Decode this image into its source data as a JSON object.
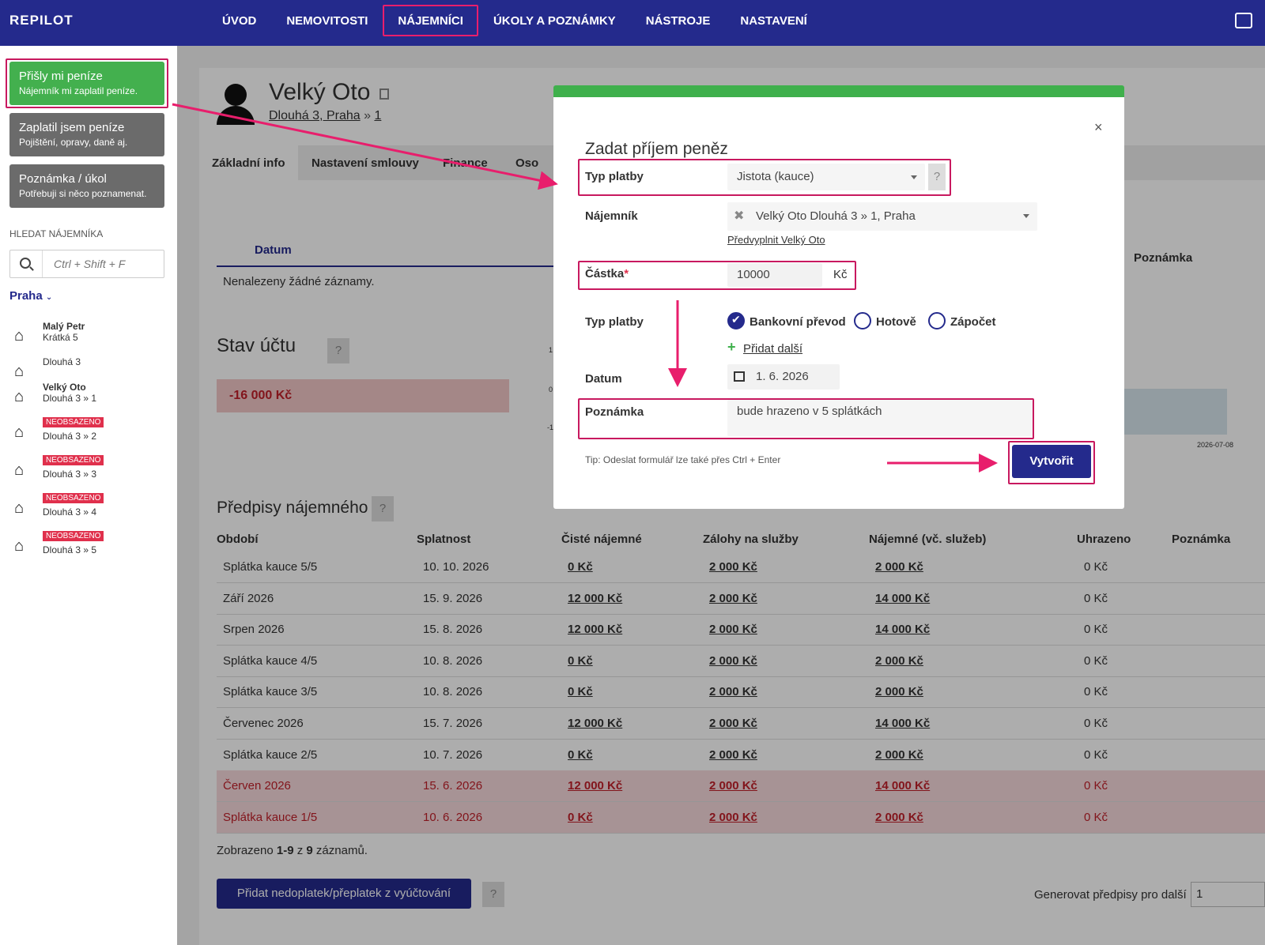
{
  "logo": "REPILOT",
  "nav": [
    "ÚVOD",
    "NEMOVITOSTI",
    "NÁJEMNÍCI",
    "ÚKOLY A POZNÁMKY",
    "NÁSTROJE",
    "NASTAVENÍ"
  ],
  "actions": [
    {
      "title": "Přišly mi peníze",
      "sub": "Nájemník mi zaplatil peníze.",
      "color": "#43b04e"
    },
    {
      "title": "Zaplatil jsem peníze",
      "sub": "Pojištění, opravy, daně aj.",
      "color": "#6b6b6b"
    },
    {
      "title": "Poznámka / úkol",
      "sub": "Potřebuji si něco poznamenat.",
      "color": "#6b6b6b"
    }
  ],
  "search": {
    "label": "HLEDAT NÁJEMNÍKA",
    "placeholder": "Ctrl + Shift + F"
  },
  "city": "Praha",
  "tenants": [
    {
      "name": "Malý Petr",
      "addr": "Krátká 5"
    },
    {
      "name": "",
      "addr": "Dlouhá 3"
    },
    {
      "name": "Velký Oto",
      "addr": "Dlouhá 3 » 1"
    },
    {
      "badge": "NEOBSAZENO",
      "addr": "Dlouhá 3 » 2"
    },
    {
      "badge": "NEOBSAZENO",
      "addr": "Dlouhá 3 » 3"
    },
    {
      "badge": "NEOBSAZENO",
      "addr": "Dlouhá 3 » 4"
    },
    {
      "badge": "NEOBSAZENO",
      "addr": "Dlouhá 3 » 5"
    }
  ],
  "tenant": {
    "name": "Velký Oto",
    "addr": "Dlouhá 3, Praha",
    "unit": "1"
  },
  "tabs": [
    "Základní info",
    "Nastavení smlouvy",
    "Finance",
    "Oso"
  ],
  "payments": {
    "col_date": "Datum",
    "col_note": "Poznámka",
    "empty": "Nenalezeny žádné záznamy."
  },
  "balance": {
    "title": "Stav účtu",
    "value": "-16 000 Kč",
    "chart_ticks": [
      "1",
      "0",
      "-1"
    ],
    "chart_date": "2026-07-08"
  },
  "modal": {
    "title": "Zadat příjem peněz",
    "close": "×",
    "type_label": "Typ platby",
    "type_value": "Jistota (kauce)",
    "tenant_label": "Nájemník",
    "tenant_value": "Velký Oto Dlouhá 3 » 1, Praha",
    "prefill": "Předvyplnit Velký Oto",
    "amount_label": "Částka",
    "amount_value": "10000",
    "currency": "Kč",
    "method_label": "Typ platby",
    "methods": [
      "Bankovní převod",
      "Hotově",
      "Zápočet"
    ],
    "add_more": "Přidat další",
    "date_label": "Datum",
    "date_value": "1. 6. 2026",
    "note_label": "Poznámka",
    "note_value": "bude hrazeno v 5 splátkách",
    "tip": "Tip: Odeslat formulář lze také přes Ctrl + Enter",
    "submit": "Vytvořit"
  },
  "rent": {
    "title": "Předpisy nájemného",
    "headers": [
      "Období",
      "Splatnost",
      "Čisté nájemné",
      "Zálohy na služby",
      "Nájemné (vč. služeb)",
      "Uhrazeno",
      "Poznámka"
    ],
    "rows": [
      [
        "Splátka kauce 5/5",
        "10. 10. 2026",
        "0 Kč",
        "2 000 Kč",
        "2 000 Kč",
        "0 Kč"
      ],
      [
        "Září 2026",
        "15. 9. 2026",
        "12 000 Kč",
        "2 000 Kč",
        "14 000 Kč",
        "0 Kč"
      ],
      [
        "Srpen 2026",
        "15. 8. 2026",
        "12 000 Kč",
        "2 000 Kč",
        "14 000 Kč",
        "0 Kč"
      ],
      [
        "Splátka kauce 4/5",
        "10. 8. 2026",
        "0 Kč",
        "2 000 Kč",
        "2 000 Kč",
        "0 Kč"
      ],
      [
        "Splátka kauce 3/5",
        "10. 8. 2026",
        "0 Kč",
        "2 000 Kč",
        "2 000 Kč",
        "0 Kč"
      ],
      [
        "Červenec 2026",
        "15. 7. 2026",
        "12 000 Kč",
        "2 000 Kč",
        "14 000 Kč",
        "0 Kč"
      ],
      [
        "Splátka kauce 2/5",
        "10. 7. 2026",
        "0 Kč",
        "2 000 Kč",
        "2 000 Kč",
        "0 Kč"
      ],
      [
        "Červen 2026",
        "15. 6. 2026",
        "12 000 Kč",
        "2 000 Kč",
        "14 000 Kč",
        "0 Kč"
      ],
      [
        "Splátka kauce 1/5",
        "10. 6. 2026",
        "0 Kč",
        "2 000 Kč",
        "2 000 Kč",
        "0 Kč"
      ]
    ],
    "shown_prefix": "Zobrazeno ",
    "shown_range": "1-9",
    "shown_mid": " z ",
    "shown_total": "9",
    "shown_suffix": " záznamů.",
    "add_button": "Přidat nedoplatek/přeplatek z vyúčtování",
    "generate_label": "Generovat předpisy pro další",
    "generate_value": "1"
  }
}
